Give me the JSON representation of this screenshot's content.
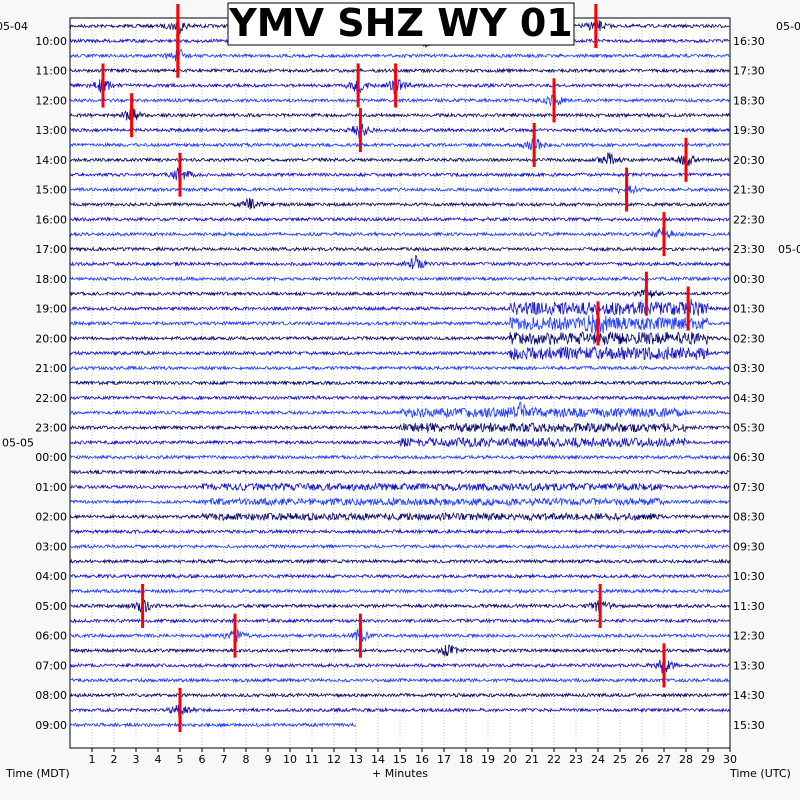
{
  "chart_data": {
    "type": "helicorder",
    "title": "YMV SHZ WY 01",
    "xlabel": "+ Minutes",
    "left_axis_label": "Time (MDT)",
    "right_axis_label": "Time (UTC)",
    "x_range": [
      0,
      30
    ],
    "x_ticks": [
      "1",
      "2",
      "3",
      "4",
      "5",
      "6",
      "7",
      "8",
      "9",
      "10",
      "11",
      "12",
      "13",
      "14",
      "15",
      "16",
      "17",
      "18",
      "19",
      "20",
      "21",
      "22",
      "23",
      "24",
      "25",
      "26",
      "27",
      "28",
      "29",
      "30"
    ],
    "left_date_labels": [
      {
        "text": "05-04",
        "row": 0
      },
      {
        "text": "05-05",
        "row": 28
      }
    ],
    "right_date_labels": [
      {
        "text": "05-0",
        "row": 0
      },
      {
        "text": "05-0",
        "row": 15
      }
    ],
    "left_times": [
      {
        "text": "10:00",
        "row": 1
      },
      {
        "text": "11:00",
        "row": 3
      },
      {
        "text": "12:00",
        "row": 5
      },
      {
        "text": "13:00",
        "row": 7
      },
      {
        "text": "14:00",
        "row": 9
      },
      {
        "text": "15:00",
        "row": 11
      },
      {
        "text": "16:00",
        "row": 13
      },
      {
        "text": "17:00",
        "row": 15
      },
      {
        "text": "18:00",
        "row": 17
      },
      {
        "text": "19:00",
        "row": 19
      },
      {
        "text": "20:00",
        "row": 21
      },
      {
        "text": "21:00",
        "row": 23
      },
      {
        "text": "22:00",
        "row": 25
      },
      {
        "text": "23:00",
        "row": 27
      },
      {
        "text": "00:00",
        "row": 29
      },
      {
        "text": "01:00",
        "row": 31
      },
      {
        "text": "02:00",
        "row": 33
      },
      {
        "text": "03:00",
        "row": 35
      },
      {
        "text": "04:00",
        "row": 37
      },
      {
        "text": "05:00",
        "row": 39
      },
      {
        "text": "06:00",
        "row": 41
      },
      {
        "text": "07:00",
        "row": 43
      },
      {
        "text": "08:00",
        "row": 45
      },
      {
        "text": "09:00",
        "row": 47
      }
    ],
    "right_times": [
      {
        "text": "16:30",
        "row": 1
      },
      {
        "text": "17:30",
        "row": 3
      },
      {
        "text": "18:30",
        "row": 5
      },
      {
        "text": "19:30",
        "row": 7
      },
      {
        "text": "20:30",
        "row": 9
      },
      {
        "text": "21:30",
        "row": 11
      },
      {
        "text": "22:30",
        "row": 13
      },
      {
        "text": "23:30",
        "row": 15
      },
      {
        "text": "00:30",
        "row": 17
      },
      {
        "text": "01:30",
        "row": 19
      },
      {
        "text": "02:30",
        "row": 21
      },
      {
        "text": "03:30",
        "row": 23
      },
      {
        "text": "04:30",
        "row": 25
      },
      {
        "text": "05:30",
        "row": 27
      },
      {
        "text": "06:30",
        "row": 29
      },
      {
        "text": "07:30",
        "row": 31
      },
      {
        "text": "08:30",
        "row": 33
      },
      {
        "text": "09:30",
        "row": 35
      },
      {
        "text": "10:30",
        "row": 37
      },
      {
        "text": "11:30",
        "row": 39
      },
      {
        "text": "12:30",
        "row": 41
      },
      {
        "text": "13:30",
        "row": 43
      },
      {
        "text": "14:30",
        "row": 45
      },
      {
        "text": "15:30",
        "row": 47
      }
    ],
    "trace_rows": 48,
    "row_colors": [
      "#0a0a6e",
      "#1414c8",
      "#1e3cff"
    ],
    "clip_color": "#ff0000",
    "last_row_end_minute": 13,
    "events": [
      {
        "row": 0,
        "minute": 4.9,
        "amp": 1.0
      },
      {
        "row": 0,
        "minute": 23.9,
        "amp": 1.0
      },
      {
        "row": 1,
        "minute": 16.2,
        "amp": 0.7
      },
      {
        "row": 2,
        "minute": 4.9,
        "amp": 1.0
      },
      {
        "row": 4,
        "minute": 1.5,
        "amp": 1.0
      },
      {
        "row": 4,
        "minute": 13.1,
        "amp": 1.0
      },
      {
        "row": 4,
        "minute": 14.8,
        "amp": 1.0
      },
      {
        "row": 5,
        "minute": 22.0,
        "amp": 1.0
      },
      {
        "row": 6,
        "minute": 2.8,
        "amp": 1.0
      },
      {
        "row": 7,
        "minute": 13.2,
        "amp": 1.0
      },
      {
        "row": 8,
        "minute": 21.1,
        "amp": 1.0
      },
      {
        "row": 9,
        "minute": 24.5,
        "amp": 0.8
      },
      {
        "row": 9,
        "minute": 28.0,
        "amp": 1.0
      },
      {
        "row": 10,
        "minute": 5.0,
        "amp": 1.0
      },
      {
        "row": 11,
        "minute": 25.3,
        "amp": 1.0
      },
      {
        "row": 12,
        "minute": 8.2,
        "amp": 0.8
      },
      {
        "row": 14,
        "minute": 27.0,
        "amp": 1.0
      },
      {
        "row": 16,
        "minute": 15.7,
        "amp": 0.9
      },
      {
        "row": 18,
        "minute": 26.2,
        "amp": 1.0
      },
      {
        "row": 19,
        "minute": 28.1,
        "amp": 1.0
      },
      {
        "row": 20,
        "minute": 24.0,
        "amp": 1.0
      },
      {
        "row": 26,
        "minute": 20.5,
        "amp": 0.8
      },
      {
        "row": 39,
        "minute": 3.3,
        "amp": 1.0
      },
      {
        "row": 39,
        "minute": 24.1,
        "amp": 1.0
      },
      {
        "row": 41,
        "minute": 7.5,
        "amp": 1.0
      },
      {
        "row": 41,
        "minute": 13.2,
        "amp": 1.0
      },
      {
        "row": 42,
        "minute": 17.2,
        "amp": 0.8
      },
      {
        "row": 43,
        "minute": 27.0,
        "amp": 1.0
      },
      {
        "row": 46,
        "minute": 5.0,
        "amp": 1.0
      }
    ]
  }
}
